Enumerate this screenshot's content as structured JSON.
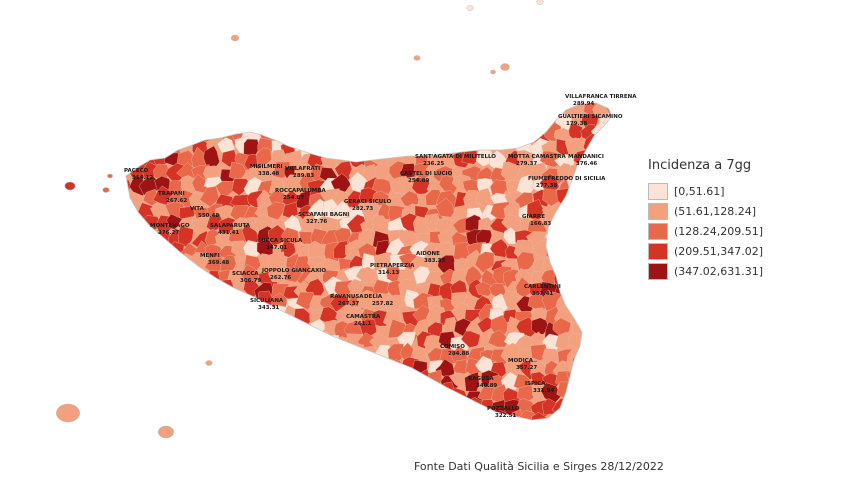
{
  "legend": {
    "title": "Incidenza a 7gg",
    "classes": [
      {
        "label": "[0,51.61]",
        "color": "#fbe3d6"
      },
      {
        "label": "(51.61,128.24]",
        "color": "#f3a07f"
      },
      {
        "label": "(128.24,209.51]",
        "color": "#e9684a"
      },
      {
        "label": "(209.51,347.02]",
        "color": "#d43325"
      },
      {
        "label": "(347.02,631.31]",
        "color": "#9e1313"
      }
    ]
  },
  "source": "Fonte Dati Qualità Sicilia e Sirges 28/12/2022",
  "towns": [
    {
      "name": "VILLAFRANCA TIRRENA",
      "value": "289.94",
      "class": 3
    },
    {
      "name": "GUALTIERI SICAMINO",
      "value": "179.38",
      "class": 2
    },
    {
      "name": "MANDANICI",
      "value": "376.46",
      "class": 4
    },
    {
      "name": "MOTTA CAMASTRA",
      "value": "279.37",
      "class": 3
    },
    {
      "name": "FIUMEFREDDO DI SICILIA",
      "value": "277.38",
      "class": 3
    },
    {
      "name": "SANT'AGATA DI MILITELLO",
      "value": "236.25",
      "class": 3
    },
    {
      "name": "CASTEL DI LUCIO",
      "value": "254.89",
      "class": 3
    },
    {
      "name": "PACECO",
      "value": "314.12",
      "class": 3
    },
    {
      "name": "TRAPANI",
      "value": "267.62",
      "class": 3
    },
    {
      "name": "VITA",
      "value": "550.48",
      "class": 4
    },
    {
      "name": "MONTEVAGO",
      "value": "376.27",
      "class": 4
    },
    {
      "name": "SALAPARUTA",
      "value": "431.41",
      "class": 4
    },
    {
      "name": "MENFI",
      "value": "369.48",
      "class": 4
    },
    {
      "name": "SCIACCA",
      "value": "306.79",
      "class": 3
    },
    {
      "name": "SICULIANA",
      "value": "343.31",
      "class": 3
    },
    {
      "name": "MISILMERI",
      "value": "338.48",
      "class": 3
    },
    {
      "name": "VILLAFRATI",
      "value": "289.83",
      "class": 3
    },
    {
      "name": "ROCCAPALUMBA",
      "value": "254.87",
      "class": 3
    },
    {
      "name": "SCLAFANI BAGNI",
      "value": "327.76",
      "class": 3
    },
    {
      "name": "GERACI SICULO",
      "value": "282.73",
      "class": 3
    },
    {
      "name": "LUCCA SICULA",
      "value": "347.01",
      "class": 3
    },
    {
      "name": "JOPPOLO GIANCAXIO",
      "value": "262.76",
      "class": 3
    },
    {
      "name": "RAVANUSA",
      "value": "267.37",
      "class": 3
    },
    {
      "name": "DELIA",
      "value": "257.82",
      "class": 3
    },
    {
      "name": "CAMASTRA",
      "value": "261.1",
      "class": 3
    },
    {
      "name": "PIETRAPERZIA",
      "value": "314.13",
      "class": 3
    },
    {
      "name": "AIDONE",
      "value": "383.33",
      "class": 4
    },
    {
      "name": "GIARRE",
      "value": "166.83",
      "class": 2
    },
    {
      "name": "CARLENTINI",
      "value": "357.41",
      "class": 4
    },
    {
      "name": "COMISO",
      "value": "284.88",
      "class": 3
    },
    {
      "name": "MODICA",
      "value": "357.27",
      "class": 4
    },
    {
      "name": "RAGUSA",
      "value": "340.89",
      "class": 3
    },
    {
      "name": "ISPICA",
      "value": "331.94",
      "class": 3
    },
    {
      "name": "POZZALLO",
      "value": "322.51",
      "class": 3
    }
  ]
}
